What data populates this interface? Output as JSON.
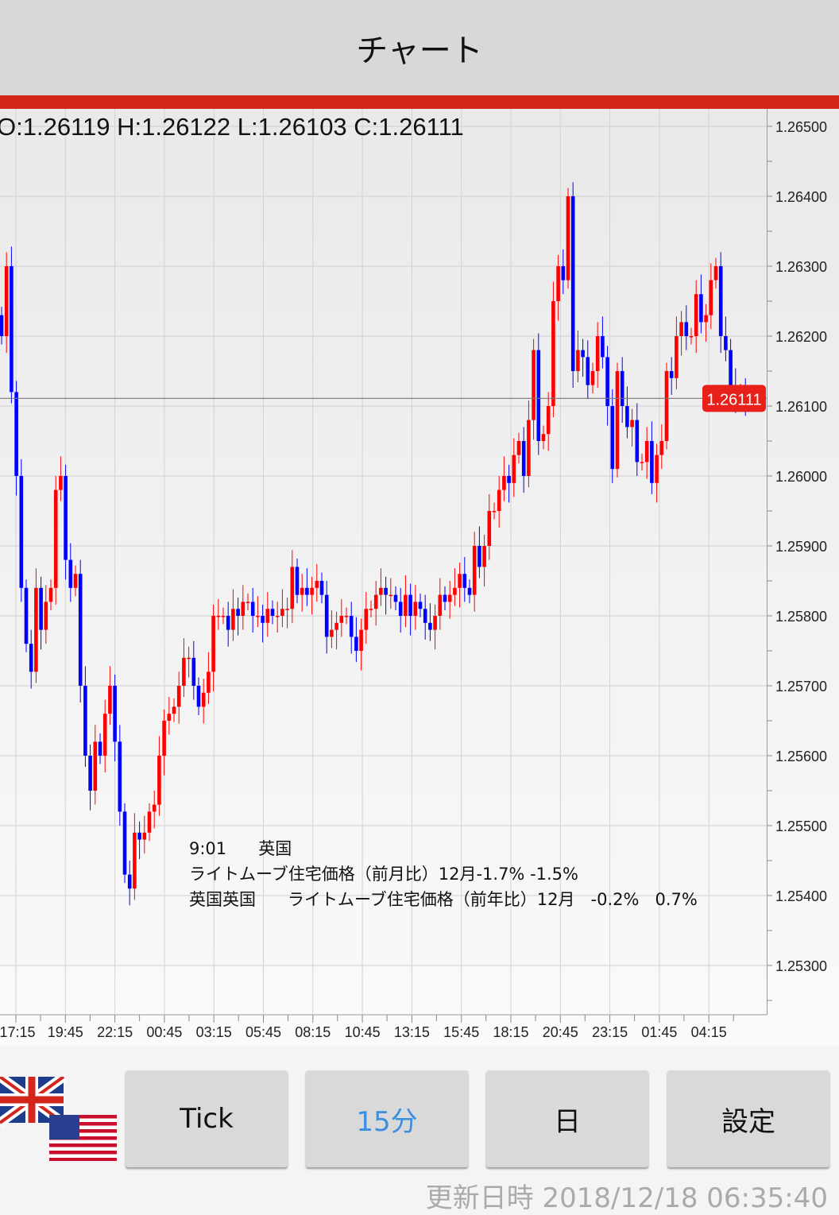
{
  "header": {
    "title": "チャート"
  },
  "ohlc_readout": "O:1.26119 H:1.26122 L:1.26103 C:1.26111",
  "event_note": {
    "line1": "9:01      英国",
    "line2": "ライトムーブ住宅価格（前月比）12月-1.7% -1.5%",
    "line3": "英国英国      ライトムーブ住宅価格（前年比）12月   -0.2%   0.7%"
  },
  "buttons": {
    "tick": "Tick",
    "m15": "15分",
    "day": "日",
    "settings": "設定"
  },
  "selected_interval": "15分",
  "footer": {
    "updated": "更新日時 2018/12/18 06:35:40"
  },
  "flags": [
    "uk-flag-icon",
    "us-flag-icon"
  ],
  "colors": {
    "accent_bar": "#d3261b",
    "up_candle": "#ff0000",
    "down_candle": "#0000ff",
    "selected_text": "#3b8fe0",
    "price_tag": "#e8201a"
  },
  "chart_data": {
    "type": "candlestick",
    "symbol_pair": "GBP/USD",
    "ylim": [
      1.2525,
      1.2652
    ],
    "y_ticks": [
      "1.26500",
      "1.26400",
      "1.26300",
      "1.26200",
      "1.26100",
      "1.26000",
      "1.25900",
      "1.25800",
      "1.25700",
      "1.25600",
      "1.25500",
      "1.25400",
      "1.25300"
    ],
    "x_ticks": [
      "17:15",
      "19:45",
      "22:15",
      "00:45",
      "03:15",
      "05:45",
      "08:15",
      "10:45",
      "13:15",
      "15:45",
      "18:15",
      "20:45",
      "23:15",
      "01:45",
      "04:15"
    ],
    "current_price": "1.26111",
    "grid": true,
    "closes": [
      1.262,
      1.263,
      1.2612,
      1.26,
      1.2584,
      1.2576,
      1.2572,
      1.2584,
      1.2578,
      1.2582,
      1.2584,
      1.2598,
      1.26,
      1.2588,
      1.2584,
      1.2586,
      1.257,
      1.256,
      1.2555,
      1.2562,
      1.256,
      1.2566,
      1.257,
      1.2562,
      1.2552,
      1.2543,
      1.2541,
      1.2549,
      1.2548,
      1.2549,
      1.2552,
      1.2553,
      1.256,
      1.2565,
      1.2566,
      1.2567,
      1.257,
      1.2574,
      1.2574,
      1.257,
      1.2567,
      1.2569,
      1.2572,
      1.258,
      1.258,
      1.258,
      1.2578,
      1.2581,
      1.258,
      1.2582,
      1.2582,
      1.258,
      1.258,
      1.2579,
      1.2581,
      1.258,
      1.258,
      1.2581,
      1.2581,
      1.2587,
      1.2583,
      1.2584,
      1.2583,
      1.2584,
      1.2585,
      1.2583,
      1.2577,
      1.2578,
      1.2579,
      1.258,
      1.258,
      1.2577,
      1.2575,
      1.2578,
      1.2581,
      1.2581,
      1.2583,
      1.2584,
      1.2583,
      1.2583,
      1.2582,
      1.258,
      1.2583,
      1.258,
      1.2582,
      1.2581,
      1.2579,
      1.2578,
      1.258,
      1.2583,
      1.2582,
      1.2583,
      1.2584,
      1.2586,
      1.2584,
      1.2583,
      1.259,
      1.2587,
      1.259,
      1.2595,
      1.2595,
      1.2598,
      1.26,
      1.2599,
      1.2603,
      1.2605,
      1.26,
      1.2608,
      1.2618,
      1.2605,
      1.2606,
      1.261,
      1.2625,
      1.263,
      1.2628,
      1.264,
      1.2615,
      1.2618,
      1.2617,
      1.2613,
      1.2615,
      1.262,
      1.2617,
      1.261,
      1.2601,
      1.2615,
      1.261,
      1.2607,
      1.2608,
      1.2602,
      1.2602,
      1.2605,
      1.2599,
      1.2603,
      1.2605,
      1.2615,
      1.2614,
      1.262,
      1.2622,
      1.262,
      1.262,
      1.2626,
      1.2622,
      1.2623,
      1.2628,
      1.263,
      1.262,
      1.2618,
      1.2613,
      1.2611,
      1.2612,
      1.2611
    ]
  }
}
